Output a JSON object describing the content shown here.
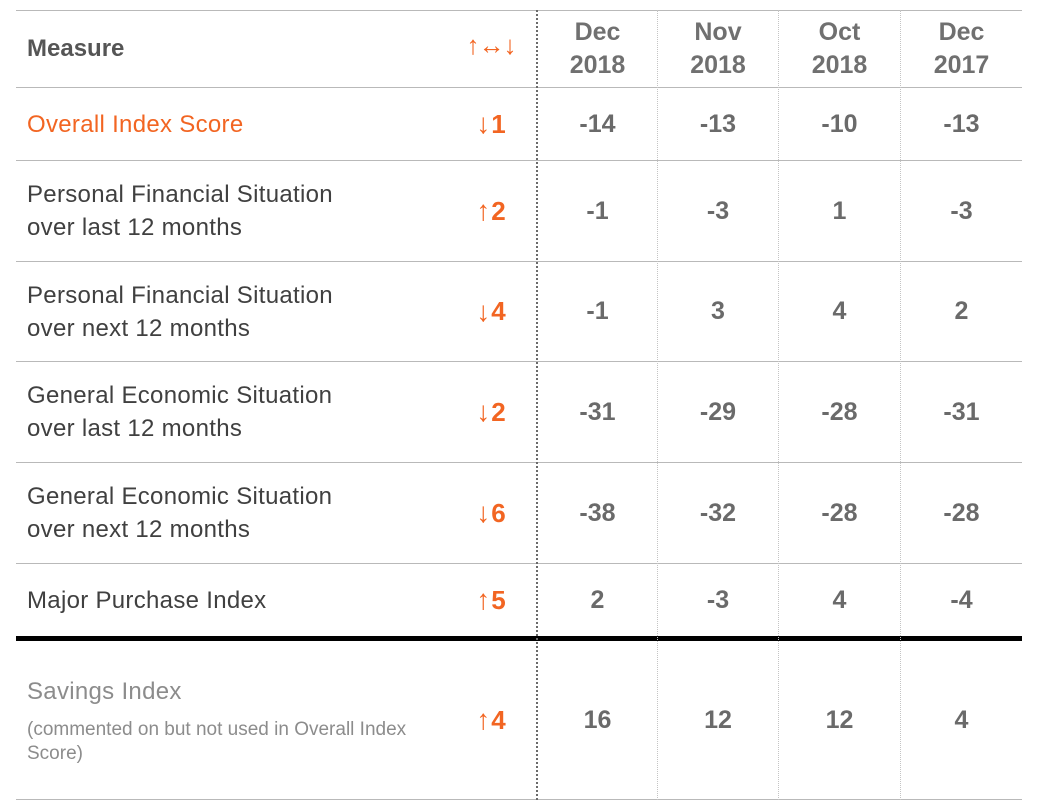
{
  "header": {
    "measure_label": "Measure",
    "change_label": "↑↔↓",
    "columns": [
      {
        "month": "Dec",
        "year": "2018"
      },
      {
        "month": "Nov",
        "year": "2018"
      },
      {
        "month": "Oct",
        "year": "2018"
      },
      {
        "month": "Dec",
        "year": "2017"
      }
    ]
  },
  "rows": [
    {
      "line1": "Overall Index Score",
      "line2": "",
      "arrow": "↓",
      "change": "1",
      "values": [
        "-14",
        "-13",
        "-10",
        "-13"
      ]
    },
    {
      "line1": "Personal Financial Situation",
      "line2": "over last 12 months",
      "arrow": "↑",
      "change": "2",
      "values": [
        "-1",
        "-3",
        "1",
        "-3"
      ]
    },
    {
      "line1": "Personal Financial Situation",
      "line2": "over next 12 months",
      "arrow": "↓",
      "change": "4",
      "values": [
        "-1",
        "3",
        "4",
        "2"
      ]
    },
    {
      "line1": "General Economic Situation",
      "line2": "over last 12 months",
      "arrow": "↓",
      "change": "2",
      "values": [
        "-31",
        "-29",
        "-28",
        "-31"
      ]
    },
    {
      "line1": "General Economic Situation",
      "line2": "over next 12 months",
      "arrow": "↓",
      "change": "6",
      "values": [
        "-38",
        "-32",
        "-28",
        "-28"
      ]
    },
    {
      "line1": "Major Purchase Index",
      "line2": "",
      "arrow": "↑",
      "change": "5",
      "values": [
        "2",
        "-3",
        "4",
        "-4"
      ]
    },
    {
      "line1": "Savings Index",
      "line2": "",
      "arrow": "↑",
      "change": "4",
      "note": "(commented on but not used in Overall Index Score)",
      "values": [
        "16",
        "12",
        "12",
        "4"
      ]
    }
  ],
  "colors": {
    "accent": "#f26522",
    "text": "#404040",
    "value": "#6a6a6a",
    "muted": "#8c8c8c",
    "rule": "#b9b9b9"
  }
}
